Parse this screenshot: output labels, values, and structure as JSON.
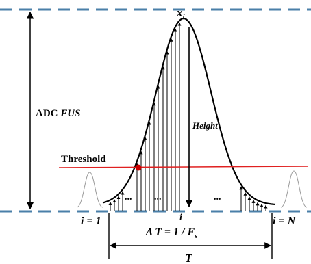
{
  "labels": {
    "peak": "x",
    "peak_sub": "i",
    "adc_prefix": "ADC ",
    "adc_italic": "FUS",
    "height": "Height",
    "threshold": "Threshold",
    "start": "i = 1",
    "end": "i = N",
    "center_i": "i",
    "delta_t": "Δ T = 1 / F",
    "delta_t_sub": "s",
    "period": "T",
    "ellipsis": "..."
  },
  "colors": {
    "reference_line": "#4a7fa8",
    "threshold_line": "#e02020",
    "threshold_dot": "#cc0000",
    "curve": "#000000",
    "side_pulse": "#9a9a9a"
  }
}
